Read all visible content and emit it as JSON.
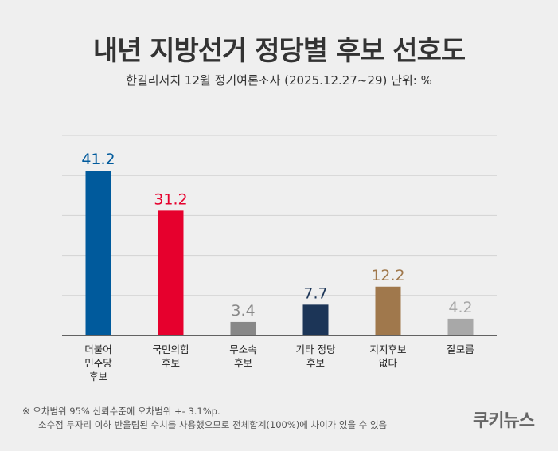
{
  "title": "내년 지방선거 정당별 후보 선호도",
  "subtitle": "한길리서치 12월 정기여론조사 (2025.12.27~29) 단위: %",
  "footnote": {
    "line1": "※ 오차범위 95% 신뢰수준에 오차범위 +- 3.1%p.",
    "line2": "소수점 두자리 이하 반올림된 수치를 사용했으므로 전체합계(100%)에 차이가 있을 수 있음"
  },
  "logo": "쿠키뉴스",
  "chart_data": {
    "type": "bar",
    "categories": [
      [
        "더불어",
        "민주당",
        "후보"
      ],
      [
        "국민의힘",
        "후보"
      ],
      [
        "무소속",
        "후보"
      ],
      [
        "기타 정당",
        "후보"
      ],
      [
        "지지후보",
        "없다"
      ],
      [
        "잘모름"
      ]
    ],
    "values": [
      41.2,
      31.2,
      3.4,
      7.7,
      12.2,
      4.2
    ],
    "bar_colors": [
      "#005a9c",
      "#e6002d",
      "#888888",
      "#1c3557",
      "#a0784c",
      "#a8a8a8"
    ],
    "label_colors": [
      "#005a9c",
      "#e6002d",
      "#888888",
      "#1c3557",
      "#a0784c",
      "#a8a8a8"
    ],
    "ylim": [
      0,
      50
    ],
    "grid": true
  }
}
